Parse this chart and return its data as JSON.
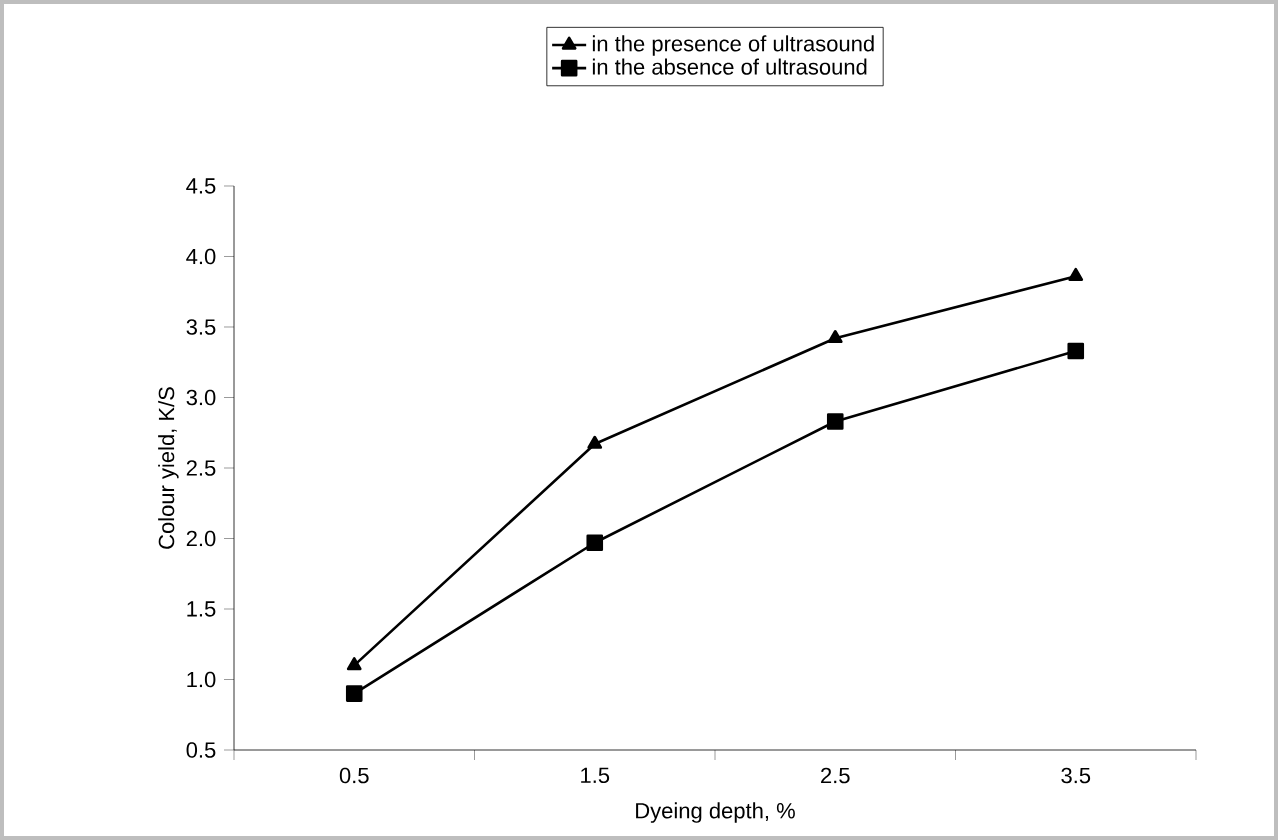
{
  "chart_data": {
    "type": "line",
    "xlabel": "Dyeing depth, %",
    "ylabel": "Colour yield, K/S",
    "categories": [
      "0.5",
      "1.5",
      "2.5",
      "3.5"
    ],
    "series": [
      {
        "name": "in the presence of ultrasound",
        "color": "#000000",
        "marker": "triangle",
        "values": [
          1.1,
          2.67,
          3.42,
          3.86
        ]
      },
      {
        "name": "in the absence of ultrasound",
        "color": "#000000",
        "marker": "square",
        "values": [
          0.9,
          1.97,
          2.83,
          3.33
        ]
      }
    ],
    "ylim": [
      0.5,
      4.5
    ],
    "yticks": [
      0.5,
      {
        "value": 1,
        "label": "1.0"
      },
      1.5,
      {
        "value": 2,
        "label": "2.0"
      },
      2.5,
      {
        "value": 3,
        "label": "3.0"
      },
      3.5,
      {
        "value": 4,
        "label": "4.0"
      },
      4.5
    ],
    "grid": false,
    "legend": "top",
    "line_style": "solid"
  }
}
